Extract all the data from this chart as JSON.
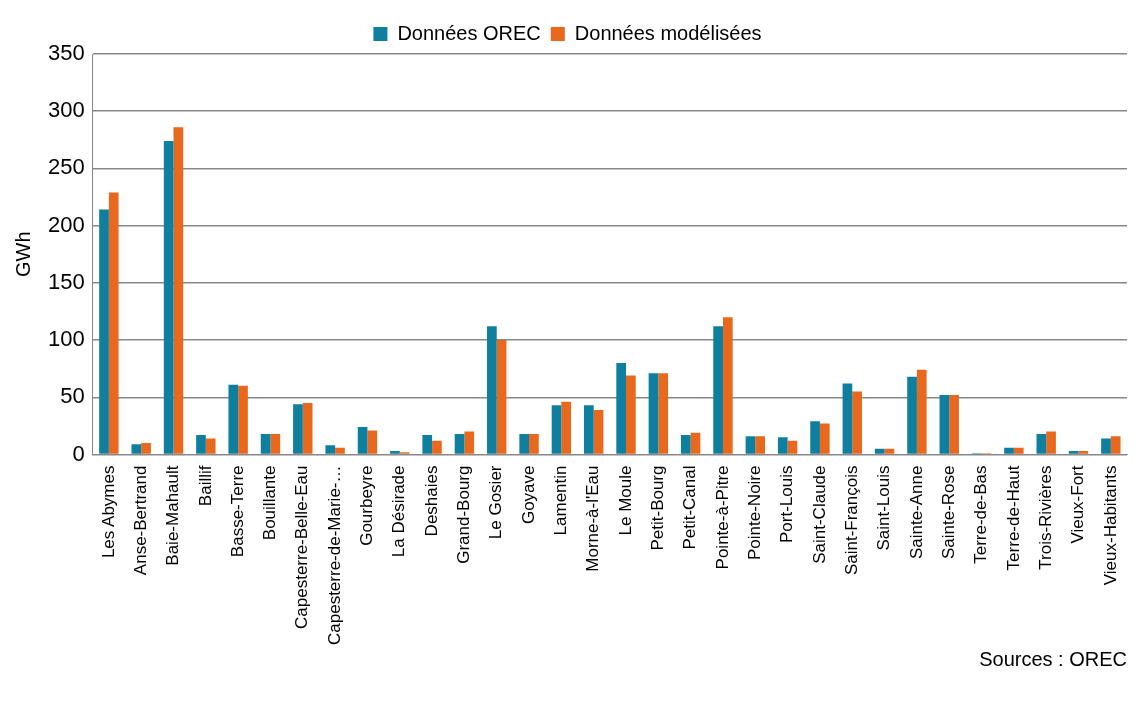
{
  "chart_data": {
    "type": "bar",
    "ylabel": "GWh",
    "categories": [
      "Les Abymes",
      "Anse-Bertrand",
      "Baie-Mahault",
      "Baillif",
      "Basse-Terre",
      "Bouillante",
      "Capesterre-Belle-Eau",
      "Capesterre-de-Marie-…",
      "Gourbeyre",
      "La Désirade",
      "Deshaies",
      "Grand-Bourg",
      "Le Gosier",
      "Goyave",
      "Lamentin",
      "Morne-à-l'Eau",
      "Le Moule",
      "Petit-Bourg",
      "Petit-Canal",
      "Pointe-à-Pitre",
      "Pointe-Noire",
      "Port-Louis",
      "Saint-Claude",
      "Saint-François",
      "Saint-Louis",
      "Sainte-Anne",
      "Sainte-Rose",
      "Terre-de-Bas",
      "Terre-de-Haut",
      "Trois-Rivières",
      "Vieux-Fort",
      "Vieux-Habitants"
    ],
    "series": [
      {
        "name": "Données OREC",
        "color": "#0e7f9e",
        "values": [
          214,
          9,
          274,
          17,
          61,
          18,
          44,
          8,
          24,
          3,
          17,
          18,
          112,
          18,
          43,
          43,
          80,
          71,
          17,
          112,
          16,
          15,
          29,
          62,
          5,
          68,
          52,
          1,
          6,
          18,
          3,
          14
        ]
      },
      {
        "name": "Données modélisées",
        "color": "#e8681e",
        "values": [
          229,
          10,
          286,
          14,
          60,
          18,
          45,
          6,
          21,
          2,
          12,
          20,
          100,
          18,
          46,
          39,
          69,
          71,
          19,
          120,
          16,
          12,
          27,
          55,
          5,
          74,
          52,
          1,
          6,
          20,
          3,
          16
        ]
      }
    ],
    "ylim": [
      0,
      350
    ],
    "yticks": [
      0,
      50,
      100,
      150,
      200,
      250,
      300,
      350
    ],
    "grid": "y",
    "legend": "top",
    "annotations": [
      "Sources : OREC"
    ]
  }
}
